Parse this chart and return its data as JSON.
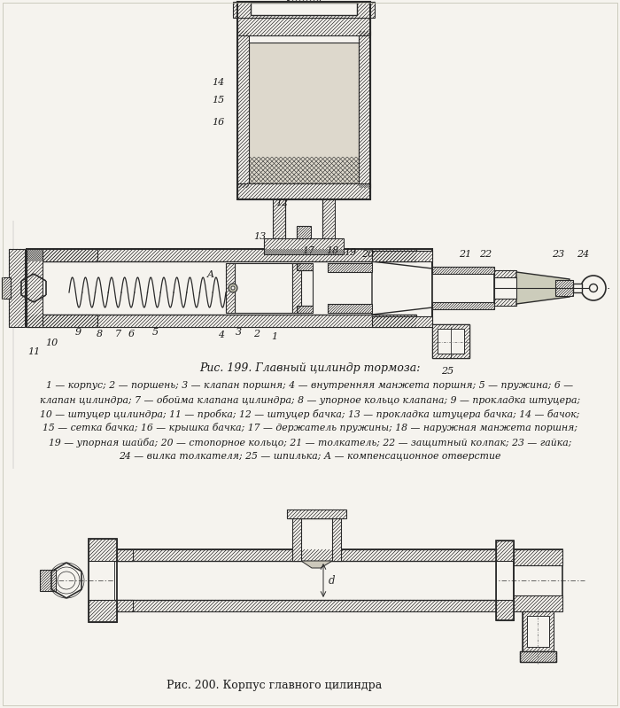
{
  "title1": "Рис. 199. Главный цилиндр тормоза:",
  "title2": "Рис. 200. Корпус главного цилиндра",
  "caption_lines": [
    "1 — корпус; 2 — поршень; 3 — клапан поршня; 4 — внутренняя манжета поршня; 5 — пружина; 6 —",
    "клапан цилиндра; 7 — обойма клапана цилиндра; 8 — упорное кольцо клапана; 9 — прокладка штуцера;",
    "10 — штуцер цилиндра; 11 — пробка; 12 — штуцер бачка; 13 — прокладка штуцера бачка; 14 — бачок;",
    "15 — сетка бачка; 16 — крышка бачка; 17 — держатель пружины; 18 — наружная манжета поршня;",
    "19 — упорная шайба; 20 — стопорное кольцо; 21 — толкатель; 22 — защитный колпак; 23 — гайка;",
    "24 — вилка толкателя; 25 — шпилька; А — компенсационное отверстие"
  ],
  "bg_color": "#f5f3ee",
  "line_color": "#2a2a2a",
  "text_color": "#1a1a1a",
  "fig_width": 7.0,
  "fig_height": 7.99
}
